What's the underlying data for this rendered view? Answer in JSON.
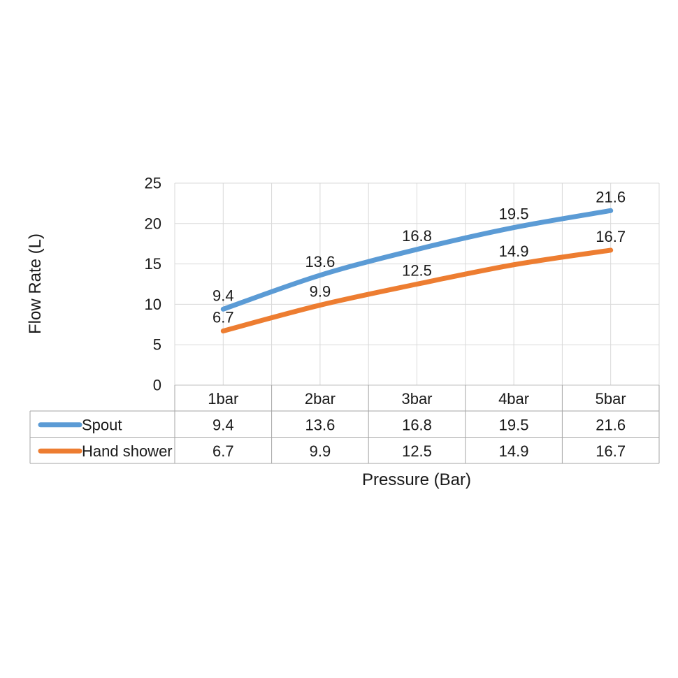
{
  "figure": {
    "background": "#ffffff"
  },
  "chart_data": {
    "type": "line",
    "title": "",
    "xlabel": "Pressure (Bar)",
    "ylabel": "Flow Rate (L)",
    "categories": [
      "1bar",
      "2bar",
      "3bar",
      "4bar",
      "5bar"
    ],
    "series": [
      {
        "name": "Spout",
        "color": "#5B9BD5",
        "values": [
          9.4,
          13.6,
          16.8,
          19.5,
          21.6
        ]
      },
      {
        "name": "Hand shower",
        "color": "#ED7D31",
        "values": [
          6.7,
          9.9,
          12.5,
          14.9,
          16.7
        ]
      }
    ],
    "ylim": [
      0,
      25
    ],
    "yticks": [
      0,
      5,
      10,
      15,
      20,
      25
    ],
    "grid": true,
    "smooth_lines": true,
    "data_labels": true,
    "data_table": true,
    "legend_position": "table-left",
    "style": {
      "gridline_color": "#d9d9d9",
      "axis_line_color": "#bfbfbf",
      "table_border_color": "#a6a6a6",
      "text_color": "#1a1a1a",
      "line_width": 7
    }
  }
}
